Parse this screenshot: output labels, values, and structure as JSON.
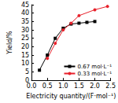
{
  "chart_data": {
    "type": "line",
    "x_label": "Electricity quantity/(F·mol⁻¹)",
    "y_label": "Yield/%",
    "series": [
      {
        "name": "0.67 mol·L⁻¹",
        "color": "#000000",
        "marker": "square",
        "line_style": "solid",
        "x": [
          0.25,
          0.5,
          0.75,
          1.0,
          1.25,
          1.5,
          1.75,
          2.0
        ],
        "values": [
          6,
          15,
          25,
          31,
          33.5,
          34,
          34.5,
          35
        ]
      },
      {
        "name": "0.33 mol·L⁻¹",
        "color": "#e8212b",
        "marker": "circle",
        "line_style": "solid",
        "x": [
          0.5,
          0.75,
          1.0,
          1.25,
          1.5,
          2.0,
          2.4
        ],
        "values": [
          13,
          22,
          30,
          34,
          38.5,
          42,
          44
        ]
      }
    ],
    "xlim": [
      0,
      2.5
    ],
    "xticks": [
      {
        "value": 0,
        "label": "0.0"
      },
      0.5,
      {
        "value": 1,
        "label": "1.0"
      },
      1.5,
      {
        "value": 2,
        "label": "2.0"
      },
      2.5
    ],
    "ylim": [
      0,
      45
    ],
    "yticks": [
      0,
      5,
      10,
      15,
      20,
      25,
      30,
      35,
      40,
      45
    ],
    "legend": "lower right",
    "grid": false
  }
}
